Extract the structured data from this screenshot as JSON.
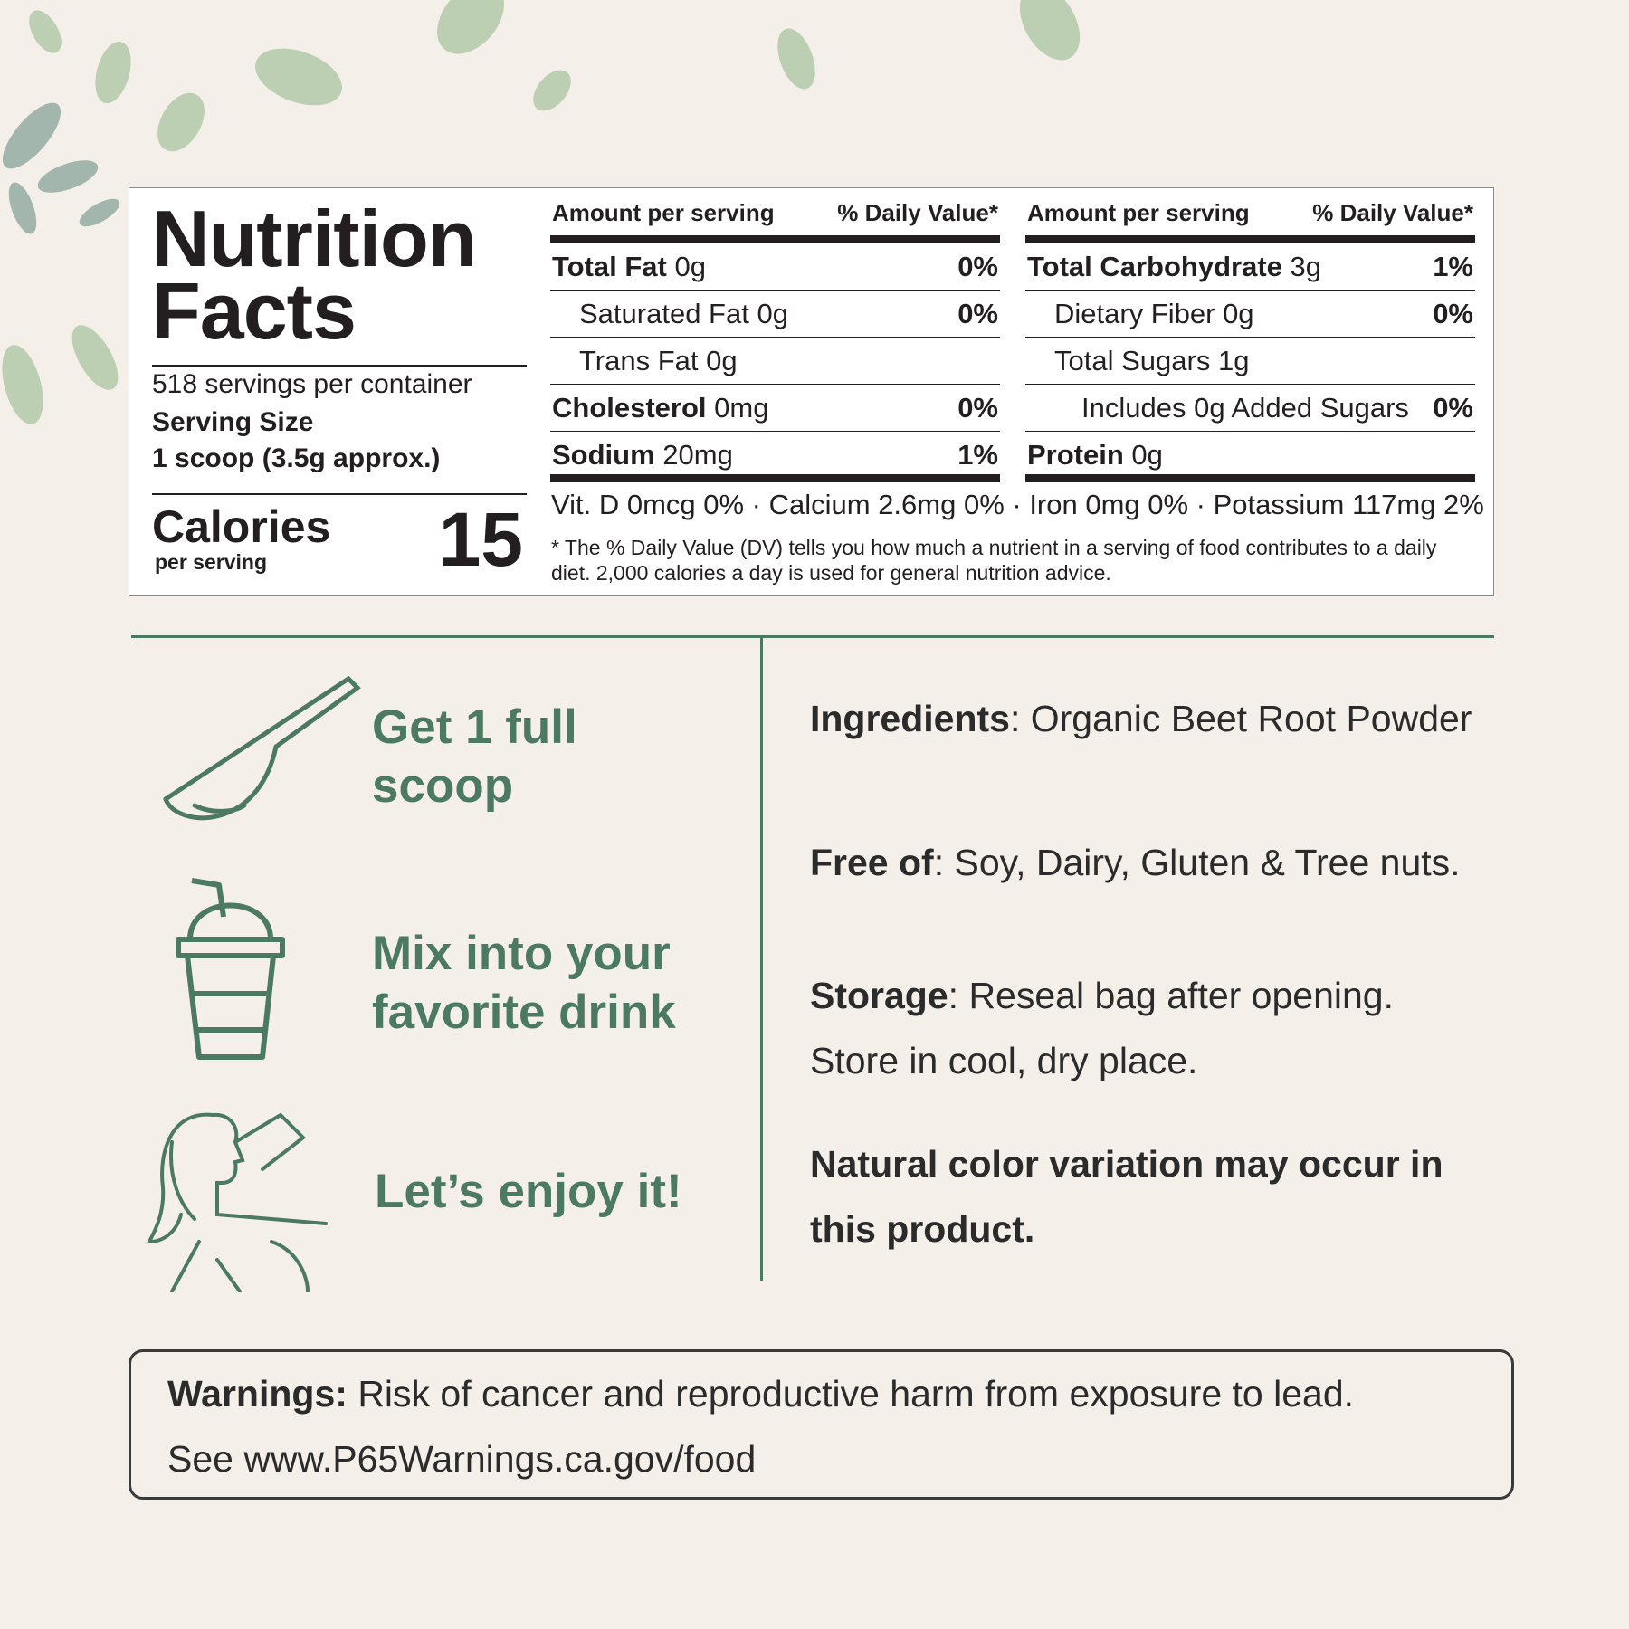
{
  "nutrition": {
    "title_line1": "Nutrition",
    "title_line2": "Facts",
    "servings": "518 servings per container",
    "serving_size_label": "Serving Size",
    "serving_size_value": "1 scoop (3.5g approx.)",
    "calories_label": "Calories",
    "calories_sub": "per serving",
    "calories_value": "15",
    "header_amount": "Amount per serving",
    "header_dv": "% Daily Value*",
    "left_rows": [
      {
        "name": "Total Fat",
        "amount": "0g",
        "dv": "0%",
        "bold": true,
        "indent": 0
      },
      {
        "name": "Saturated Fat",
        "amount": "0g",
        "dv": "0%",
        "bold": false,
        "indent": 1
      },
      {
        "name": "Trans Fat",
        "amount": "0g",
        "dv": "",
        "bold": false,
        "indent": 1
      },
      {
        "name": "Cholesterol",
        "amount": "0mg",
        "dv": "0%",
        "bold": true,
        "indent": 0
      },
      {
        "name": "Sodium",
        "amount": "20mg",
        "dv": "1%",
        "bold": true,
        "indent": 0
      }
    ],
    "right_rows": [
      {
        "name": "Total Carbohydrate",
        "amount": "3g",
        "dv": "1%",
        "bold": true,
        "indent": 0
      },
      {
        "name": "Dietary Fiber",
        "amount": "0g",
        "dv": "0%",
        "bold": false,
        "indent": 1
      },
      {
        "name": "Total Sugars",
        "amount": "1g",
        "dv": "",
        "bold": false,
        "indent": 1
      },
      {
        "name": "Includes 0g Added Sugars",
        "amount": "",
        "dv": "0%",
        "bold": false,
        "indent": 2
      },
      {
        "name": "Protein",
        "amount": "0g",
        "dv": "",
        "bold": true,
        "indent": 0
      }
    ],
    "vitamins": "Vit. D 0mcg 0% · Calcium 2.6mg 0% · Iron 0mg 0% · Potassium 117mg 2%",
    "footnote_line1": "* The % Daily Value (DV) tells you how much a nutrient in a serving of food contributes to a daily",
    "footnote_line2": "diet. 2,000 calories a day is used for general nutrition advice."
  },
  "steps": [
    {
      "icon": "scoop-icon",
      "line1": "Get 1 full",
      "line2": "scoop"
    },
    {
      "icon": "cup-icon",
      "line1": "Mix into your",
      "line2": "favorite drink"
    },
    {
      "icon": "woman-drinking-icon",
      "line1": "Let’s enjoy it!"
    }
  ],
  "info": {
    "ingredients_label": "Ingredients",
    "ingredients_value": ": Organic Beet Root Powder",
    "free_label": "Free of",
    "free_value": ": Soy, Dairy, Gluten & Tree nuts.",
    "storage_label": "Storage",
    "storage_value": ": Reseal bag after opening.",
    "storage_line2": "Store in cool, dry place.",
    "variation_line1": "Natural color variation may occur in",
    "variation_line2": "this product."
  },
  "warning": {
    "label": "Warnings:",
    "text": " Risk of cancer and reproductive harm from exposure to lead.",
    "line2": "See www.P65Warnings.ca.gov/food"
  },
  "colors": {
    "accent": "#4b7a61",
    "background": "#f5efe9",
    "text": "#231f20"
  }
}
